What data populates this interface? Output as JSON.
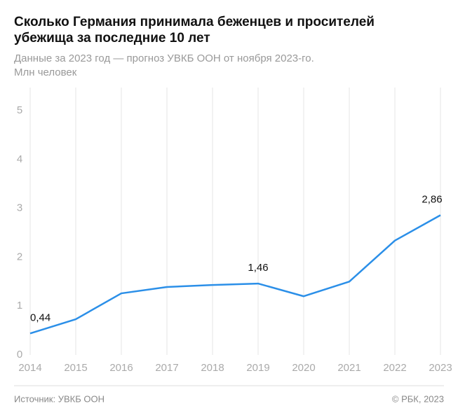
{
  "chart_data": {
    "type": "line",
    "title": [
      "Сколько Германия принимала беженцев и просителей",
      "убежища за последние 10 лет"
    ],
    "subtitle": [
      "Данные за 2023 год — прогноз УВКБ ООН от ноября 2023-го.",
      "Млн человек"
    ],
    "x": [
      2014,
      2015,
      2016,
      2017,
      2018,
      2019,
      2020,
      2021,
      2022,
      2023
    ],
    "series": [
      {
        "color": "#2b8fe8",
        "values": [
          0.44,
          0.73,
          1.26,
          1.39,
          1.43,
          1.46,
          1.2,
          1.5,
          2.34,
          2.86
        ],
        "value_labels": [
          "0,44",
          null,
          null,
          null,
          null,
          "1,46",
          null,
          null,
          null,
          "2,86"
        ]
      }
    ],
    "xlim": [
      2014,
      2023
    ],
    "xticks": [
      2014,
      2015,
      2016,
      2017,
      2018,
      2019,
      2020,
      2021,
      2022,
      2023
    ],
    "ylim": [
      0,
      5
    ],
    "yticks": [
      0,
      1,
      2,
      3,
      4,
      5
    ],
    "grid": "x",
    "source": "Источник: УВКБ ООН",
    "credit": "© РБК, 2023"
  }
}
